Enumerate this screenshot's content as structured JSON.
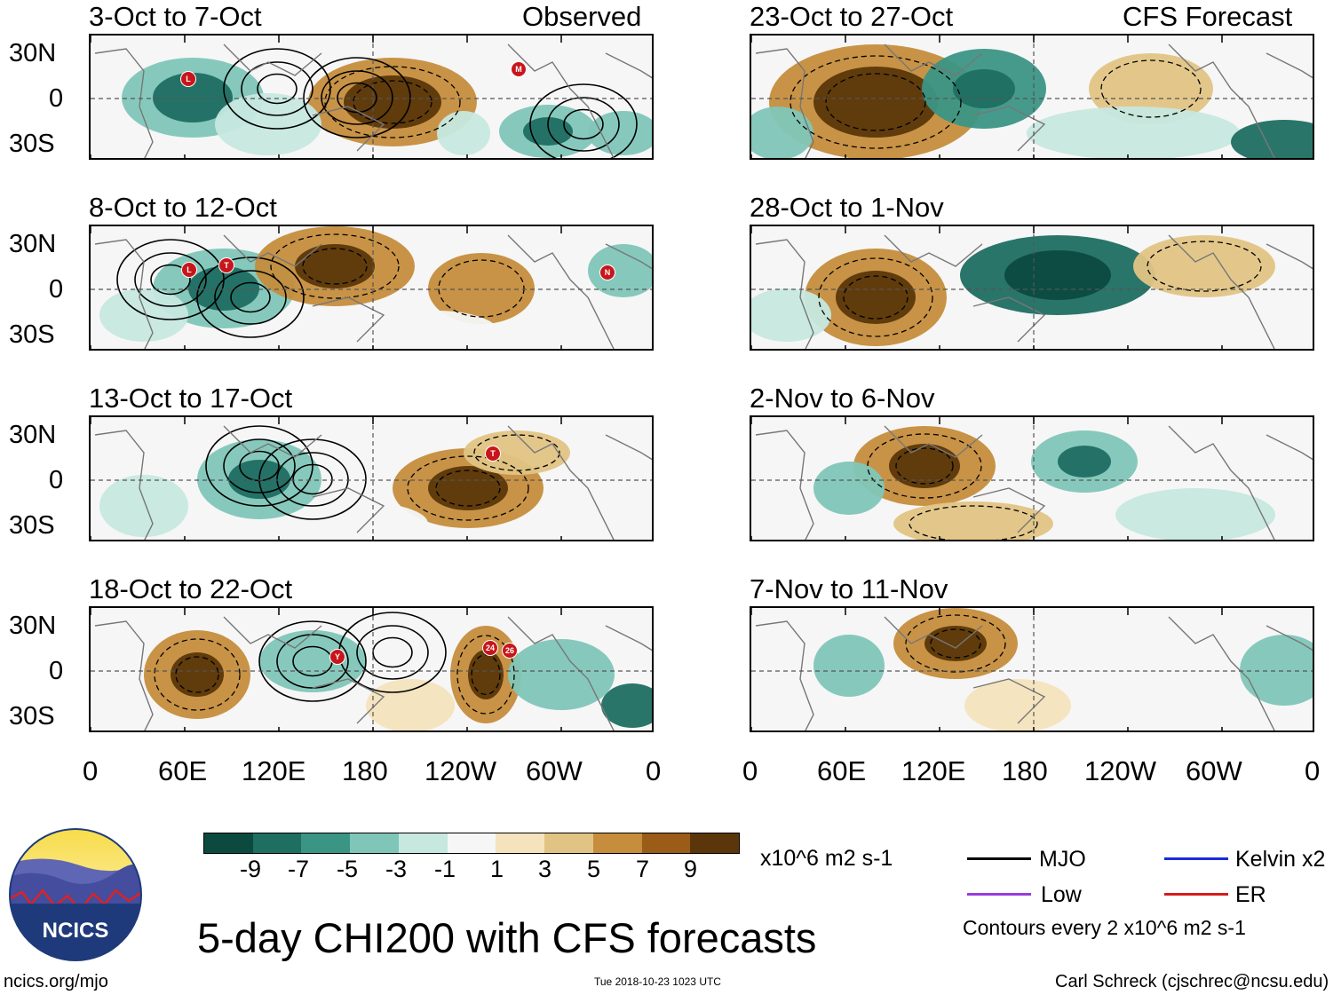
{
  "columns": {
    "left_label": "Observed",
    "right_label": "CFS Forecast"
  },
  "panels": [
    {
      "period": "3-Oct to 7-Oct",
      "storms": [
        "L",
        "M"
      ]
    },
    {
      "period": "23-Oct to 27-Oct",
      "storms": []
    },
    {
      "period": "8-Oct to 12-Oct",
      "storms": [
        "L",
        "T",
        "N"
      ]
    },
    {
      "period": "28-Oct to 1-Nov",
      "storms": []
    },
    {
      "period": "13-Oct to 17-Oct",
      "storms": [
        "T"
      ]
    },
    {
      "period": "2-Nov to 6-Nov",
      "storms": []
    },
    {
      "period": "18-Oct to 22-Oct",
      "storms": [
        "Y",
        "24",
        "26"
      ]
    },
    {
      "period": "7-Nov to 11-Nov",
      "storms": []
    }
  ],
  "y_axis": [
    "30N",
    "0",
    "30S"
  ],
  "x_axis": [
    "0",
    "60E",
    "120E",
    "180",
    "120W",
    "60W",
    "0"
  ],
  "colorbar": {
    "units": "x10^6 m2 s-1",
    "ticks": [
      "-9",
      "-7",
      "-5",
      "-3",
      "-1",
      "1",
      "3",
      "5",
      "7",
      "9"
    ],
    "colors": [
      "#0c4a40",
      "#1f6e62",
      "#3b9585",
      "#7fc6b8",
      "#c6e8df",
      "#f6f6f6",
      "#f4e3bd",
      "#e1c484",
      "#c58d3c",
      "#9a5c17",
      "#5b360a"
    ]
  },
  "legend": {
    "mjo": "MJO",
    "kelvin": "Kelvin x2",
    "low": "Low",
    "er": "ER",
    "mjo_color": "#000000",
    "kelvin_color": "#1a2bdc",
    "low_color": "#9b3bde",
    "er_color": "#d81a1a",
    "contour_note": "Contours every 2 x10^6 m2 s-1"
  },
  "title": "5-day CHI200 with CFS forecasts",
  "logo_text": "NCICS",
  "site": "ncics.org/mjo",
  "timestamp": "Tue 2018-10-23 1023 UTC",
  "credit": "Carl Schreck (cjschrec@ncsu.edu)"
}
